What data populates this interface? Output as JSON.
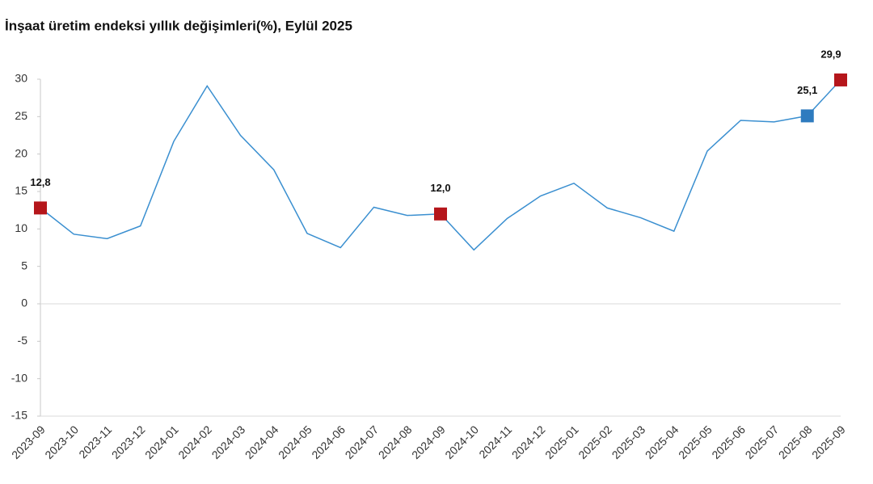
{
  "chart_data": {
    "type": "line",
    "title": "İnşaat üretim endeksi yıllık değişimleri(%), Eylül 2025",
    "categories": [
      "2023-09",
      "2023-10",
      "2023-11",
      "2023-12",
      "2024-01",
      "2024-02",
      "2024-03",
      "2024-04",
      "2024-05",
      "2024-06",
      "2024-07",
      "2024-08",
      "2024-09",
      "2024-10",
      "2024-11",
      "2024-12",
      "2025-01",
      "2025-02",
      "2025-03",
      "2025-04",
      "2025-05",
      "2025-06",
      "2025-07",
      "2025-08",
      "2025-09"
    ],
    "values": [
      12.8,
      9.3,
      8.7,
      10.4,
      21.7,
      29.1,
      22.5,
      17.9,
      9.4,
      7.5,
      12.9,
      11.8,
      12.0,
      7.2,
      11.4,
      14.4,
      16.1,
      12.8,
      11.5,
      9.7,
      20.4,
      24.5,
      24.3,
      25.1,
      29.9
    ],
    "value_labels": [
      "12,8",
      null,
      null,
      null,
      null,
      null,
      null,
      null,
      null,
      null,
      null,
      null,
      "12,0",
      null,
      null,
      null,
      null,
      null,
      null,
      null,
      null,
      null,
      null,
      "25,1",
      "29,9"
    ],
    "marker_colors": [
      "#b5161b",
      null,
      null,
      null,
      null,
      null,
      null,
      null,
      null,
      null,
      null,
      null,
      "#b5161b",
      null,
      null,
      null,
      null,
      null,
      null,
      null,
      null,
      null,
      null,
      "#2e7bbf",
      "#b5161b"
    ],
    "color": "#3a8fd0",
    "ylim": [
      -15,
      30
    ],
    "yticks": [
      -15,
      -10,
      -5,
      0,
      5,
      10,
      15,
      20,
      25,
      30
    ]
  }
}
